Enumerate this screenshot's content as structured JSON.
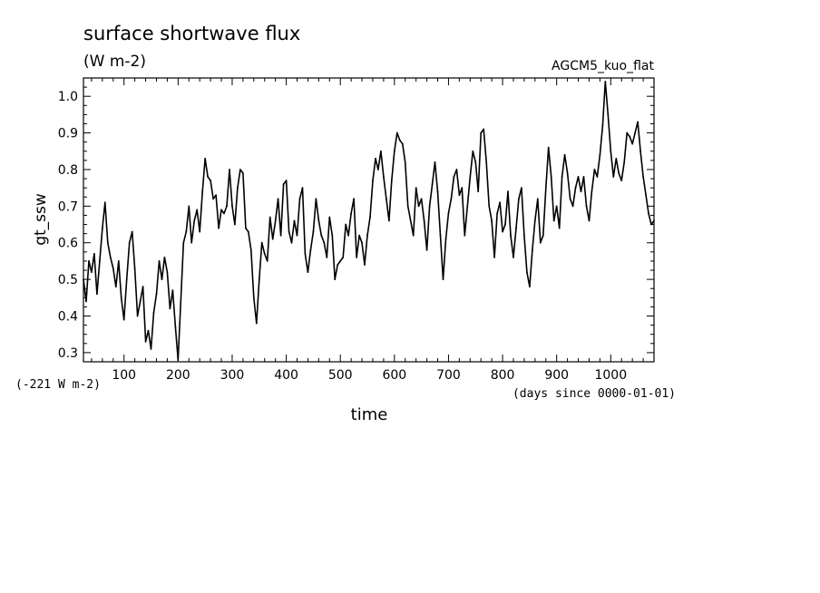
{
  "chart_data": {
    "type": "line",
    "title": "surface shortwave flux",
    "units": "(W m-2)",
    "run_label": "AGCM5_kuo_flat",
    "ylabel": "gt_ssw",
    "xlabel": "time",
    "x_units": "(days since 0000-01-01)",
    "y_offset_note": "(-221 W m-2)",
    "xlim": [
      25,
      1080
    ],
    "ylim": [
      0.275,
      1.05
    ],
    "x_ticks": [
      100,
      200,
      300,
      400,
      500,
      600,
      700,
      800,
      900,
      1000
    ],
    "y_ticks": [
      "0.3",
      "0.4",
      "0.5",
      "0.6",
      "0.7",
      "0.8",
      "0.9",
      "1.0"
    ],
    "grid": false,
    "series": [
      {
        "color": "#000000",
        "x": [
          25,
          30,
          35,
          40,
          45,
          50,
          55,
          60,
          65,
          70,
          75,
          80,
          85,
          90,
          95,
          100,
          105,
          110,
          115,
          120,
          125,
          130,
          135,
          140,
          145,
          150,
          155,
          160,
          165,
          170,
          175,
          180,
          185,
          190,
          195,
          200,
          205,
          210,
          215,
          220,
          225,
          230,
          235,
          240,
          245,
          250,
          255,
          260,
          265,
          270,
          275,
          280,
          285,
          290,
          295,
          300,
          305,
          310,
          315,
          320,
          325,
          330,
          335,
          340,
          345,
          350,
          355,
          360,
          365,
          370,
          375,
          380,
          385,
          390,
          395,
          400,
          405,
          410,
          415,
          420,
          425,
          430,
          435,
          440,
          445,
          450,
          455,
          460,
          465,
          470,
          475,
          480,
          485,
          490,
          495,
          500,
          505,
          510,
          515,
          520,
          525,
          530,
          535,
          540,
          545,
          550,
          555,
          560,
          565,
          570,
          575,
          580,
          585,
          590,
          595,
          600,
          605,
          610,
          615,
          620,
          625,
          630,
          635,
          640,
          645,
          650,
          655,
          660,
          665,
          670,
          675,
          680,
          685,
          690,
          695,
          700,
          705,
          710,
          715,
          720,
          725,
          730,
          735,
          740,
          745,
          750,
          755,
          760,
          765,
          770,
          775,
          780,
          785,
          790,
          795,
          800,
          805,
          810,
          815,
          820,
          825,
          830,
          835,
          840,
          845,
          850,
          855,
          860,
          865,
          870,
          875,
          880,
          885,
          890,
          895,
          900,
          905,
          910,
          915,
          920,
          925,
          930,
          935,
          940,
          945,
          950,
          955,
          960,
          965,
          970,
          975,
          980,
          985,
          990,
          995,
          1000,
          1005,
          1010,
          1015,
          1020,
          1025,
          1030,
          1035,
          1040,
          1045,
          1050,
          1055,
          1060,
          1065,
          1070,
          1075,
          1080
        ],
        "values": [
          0.5,
          0.44,
          0.55,
          0.52,
          0.57,
          0.46,
          0.55,
          0.64,
          0.71,
          0.6,
          0.56,
          0.53,
          0.48,
          0.55,
          0.45,
          0.39,
          0.5,
          0.6,
          0.63,
          0.53,
          0.4,
          0.44,
          0.48,
          0.33,
          0.36,
          0.31,
          0.41,
          0.46,
          0.55,
          0.5,
          0.56,
          0.52,
          0.42,
          0.47,
          0.37,
          0.28,
          0.44,
          0.6,
          0.63,
          0.7,
          0.6,
          0.66,
          0.69,
          0.63,
          0.74,
          0.83,
          0.78,
          0.77,
          0.72,
          0.73,
          0.64,
          0.69,
          0.68,
          0.7,
          0.8,
          0.7,
          0.65,
          0.75,
          0.8,
          0.79,
          0.64,
          0.63,
          0.58,
          0.45,
          0.38,
          0.5,
          0.6,
          0.57,
          0.55,
          0.67,
          0.61,
          0.66,
          0.72,
          0.62,
          0.76,
          0.77,
          0.63,
          0.6,
          0.66,
          0.62,
          0.72,
          0.75,
          0.57,
          0.52,
          0.58,
          0.63,
          0.72,
          0.66,
          0.62,
          0.6,
          0.56,
          0.67,
          0.62,
          0.5,
          0.54,
          0.55,
          0.56,
          0.65,
          0.62,
          0.68,
          0.72,
          0.56,
          0.62,
          0.6,
          0.54,
          0.62,
          0.67,
          0.77,
          0.83,
          0.8,
          0.85,
          0.78,
          0.72,
          0.66,
          0.77,
          0.85,
          0.9,
          0.88,
          0.87,
          0.82,
          0.7,
          0.66,
          0.62,
          0.75,
          0.7,
          0.72,
          0.66,
          0.58,
          0.7,
          0.76,
          0.82,
          0.74,
          0.62,
          0.5,
          0.61,
          0.68,
          0.72,
          0.78,
          0.8,
          0.73,
          0.75,
          0.62,
          0.7,
          0.78,
          0.85,
          0.82,
          0.74,
          0.9,
          0.91,
          0.82,
          0.7,
          0.66,
          0.56,
          0.68,
          0.71,
          0.63,
          0.65,
          0.74,
          0.62,
          0.56,
          0.64,
          0.72,
          0.75,
          0.62,
          0.52,
          0.48,
          0.58,
          0.66,
          0.72,
          0.6,
          0.62,
          0.75,
          0.86,
          0.78,
          0.66,
          0.7,
          0.64,
          0.78,
          0.84,
          0.79,
          0.72,
          0.7,
          0.75,
          0.78,
          0.74,
          0.78,
          0.7,
          0.66,
          0.74,
          0.8,
          0.78,
          0.84,
          0.92,
          1.04,
          0.95,
          0.85,
          0.78,
          0.83,
          0.79,
          0.77,
          0.82,
          0.9,
          0.89,
          0.87,
          0.9,
          0.93,
          0.85,
          0.78,
          0.73,
          0.68,
          0.65,
          0.66
        ]
      }
    ]
  }
}
